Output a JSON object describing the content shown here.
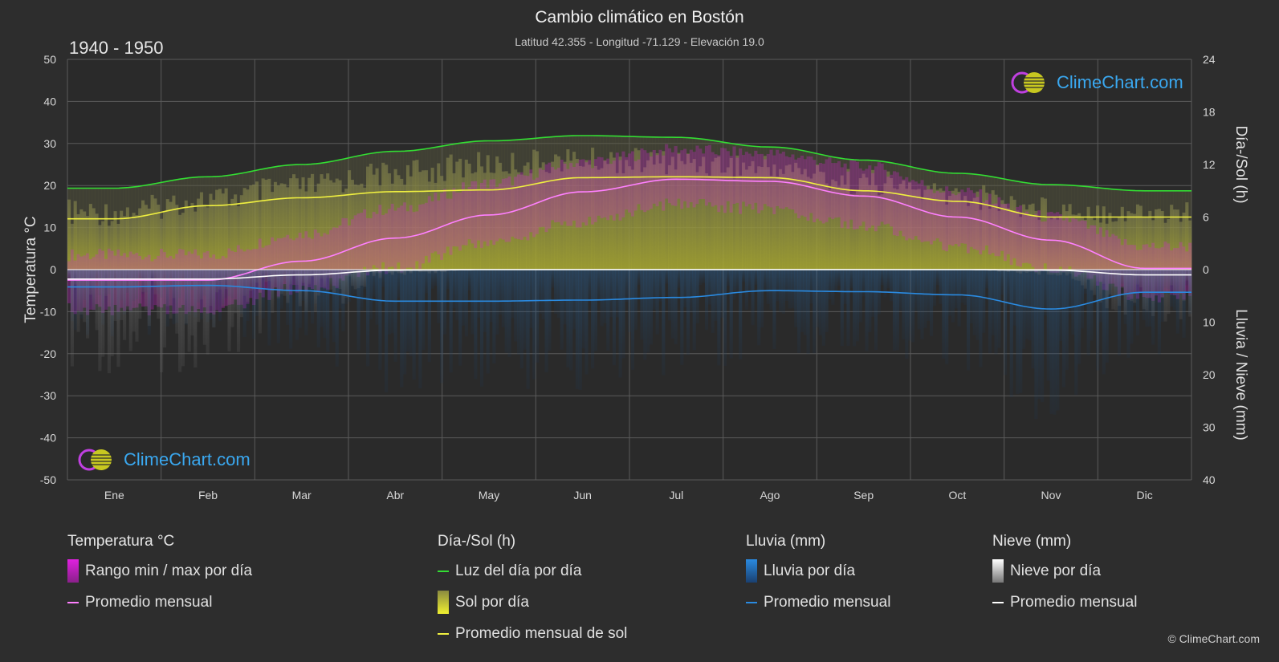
{
  "header": {
    "title": "Cambio climático en Bostón",
    "subtitle": "Latitud 42.355 - Longitud -71.129 - Elevación 19.0",
    "period": "1940 - 1950"
  },
  "brand": {
    "name": "ClimeChart.com",
    "copyright": "© ClimeChart.com"
  },
  "colors": {
    "background": "#2d2d2d",
    "temp_range": "#e020e0",
    "temp_avg": "#ff80ff",
    "daylight": "#33dd33",
    "sunshine": "#c8c830",
    "sunshine_avg": "#f0f040",
    "rain": "#2a8ae0",
    "rain_avg": "#2a8ae0",
    "snow": "#d0d0d0",
    "snow_avg": "#ffffff"
  },
  "chart_data": {
    "type": "line",
    "title": "Cambio climático en Bostón",
    "categories": [
      "Ene",
      "Feb",
      "Mar",
      "Abr",
      "May",
      "Jun",
      "Jul",
      "Ago",
      "Sep",
      "Oct",
      "Nov",
      "Dic"
    ],
    "axes": {
      "left": {
        "label": "Temperatura °C",
        "min": -50,
        "max": 50,
        "ticks": [
          50,
          40,
          30,
          20,
          10,
          0,
          -10,
          -20,
          -30,
          -40,
          -50
        ]
      },
      "right_top": {
        "label": "Día-/Sol (h)",
        "min": 0,
        "max": 24,
        "ticks": [
          24,
          18,
          12,
          6,
          0
        ]
      },
      "right_bottom": {
        "label": "Lluvia / Nieve (mm)",
        "min": 0,
        "max": 40,
        "ticks": [
          10,
          20,
          30,
          40
        ]
      }
    },
    "grid": true,
    "series": [
      {
        "name": "Luz del día por día",
        "axis": "hours",
        "values": [
          9.3,
          10.6,
          12.0,
          13.5,
          14.7,
          15.3,
          15.1,
          14.0,
          12.5,
          11.0,
          9.7,
          9.0
        ]
      },
      {
        "name": "Promedio mensual de sol",
        "axis": "hours",
        "values": [
          5.8,
          7.3,
          8.2,
          8.9,
          9.1,
          10.5,
          10.6,
          10.5,
          9.0,
          7.8,
          6.0,
          6.0
        ]
      },
      {
        "name": "Sol por día",
        "axis": "hours",
        "values": [
          8.0,
          9.5,
          11.0,
          12.5,
          13.5,
          14.0,
          13.8,
          13.2,
          11.5,
          10.0,
          8.5,
          8.0
        ]
      },
      {
        "name": "Promedio mensual",
        "group": "temperature",
        "axis": "temp",
        "values": [
          -2.5,
          -2.5,
          2.0,
          7.5,
          13.0,
          18.5,
          21.5,
          21.0,
          17.5,
          12.5,
          7.0,
          0.3
        ]
      },
      {
        "name": "Rango min / max por día",
        "axis": "temp",
        "min": [
          -8,
          -8,
          -3,
          2,
          8,
          13,
          17,
          16,
          12,
          7,
          2,
          -5
        ],
        "max": [
          2,
          2,
          7,
          13,
          19,
          24,
          27,
          26,
          23,
          17,
          11,
          4
        ]
      },
      {
        "name": "Promedio mensual",
        "group": "rain",
        "axis": "mm",
        "values": [
          3.3,
          3.0,
          4.0,
          6.0,
          6.0,
          5.8,
          5.3,
          4.0,
          4.2,
          4.8,
          7.5,
          4.3
        ]
      },
      {
        "name": "Promedio mensual",
        "group": "snow",
        "axis": "mm",
        "values": [
          1.8,
          1.8,
          1.0,
          0.1,
          0,
          0,
          0,
          0,
          0,
          0,
          0.1,
          1.0
        ]
      }
    ]
  },
  "legend": {
    "groups": [
      {
        "heading": "Temperatura °C",
        "items": [
          "Rango min / max por día",
          "Promedio mensual"
        ]
      },
      {
        "heading": "Día-/Sol (h)",
        "items": [
          "Luz del día por día",
          "Sol por día",
          "Promedio mensual de sol"
        ]
      },
      {
        "heading": "Lluvia (mm)",
        "items": [
          "Lluvia por día",
          "Promedio mensual"
        ]
      },
      {
        "heading": "Nieve (mm)",
        "items": [
          "Nieve por día",
          "Promedio mensual"
        ]
      }
    ]
  }
}
